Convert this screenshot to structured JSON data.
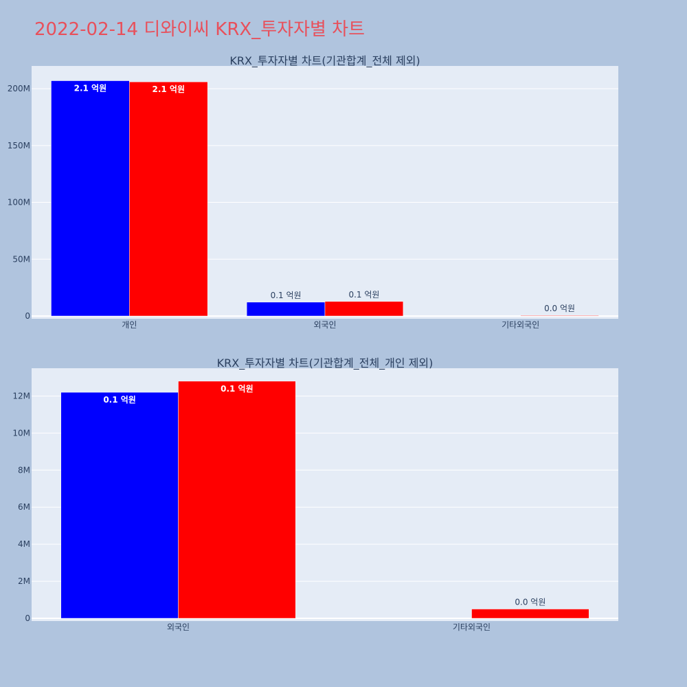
{
  "page": {
    "title": "2022-02-14 디와이씨 KRX_투자자별 차트",
    "background": "#b0c4de",
    "title_color": "#e8505b"
  },
  "chart_data": [
    {
      "type": "bar",
      "title": "KRX_투자자별 차트(기관합계_전체 제외)",
      "categories": [
        "개인",
        "외국인",
        "기타외국인"
      ],
      "series": [
        {
          "color": "#0000ff",
          "values": [
            207000000,
            12200000,
            0
          ],
          "labels": [
            "2.1 억원",
            "0.1 억원",
            ""
          ]
        },
        {
          "color": "#ff0000",
          "values": [
            206000000,
            12800000,
            500000
          ],
          "labels": [
            "2.1 억원",
            "0.1 억원",
            "0.0 억원"
          ]
        }
      ],
      "ylim": [
        0,
        220000000
      ],
      "yticks": [
        0,
        50000000,
        100000000,
        150000000,
        200000000
      ],
      "ytick_labels": [
        "0",
        "50M",
        "100M",
        "150M",
        "200M"
      ],
      "plot_bg": "#e5ecf6",
      "grid": true
    },
    {
      "type": "bar",
      "title": "KRX_투자자별 차트(기관합계_전체_개인 제외)",
      "categories": [
        "외국인",
        "기타외국인"
      ],
      "series": [
        {
          "color": "#0000ff",
          "values": [
            12200000,
            0
          ],
          "labels": [
            "0.1 억원",
            ""
          ]
        },
        {
          "color": "#ff0000",
          "values": [
            12800000,
            500000
          ],
          "labels": [
            "0.1 억원",
            "0.0 억원"
          ]
        }
      ],
      "ylim": [
        0,
        13500000
      ],
      "yticks": [
        0,
        2000000,
        4000000,
        6000000,
        8000000,
        10000000,
        12000000
      ],
      "ytick_labels": [
        "0",
        "2M",
        "4M",
        "6M",
        "8M",
        "10M",
        "12M"
      ],
      "plot_bg": "#e5ecf6",
      "grid": true
    }
  ]
}
